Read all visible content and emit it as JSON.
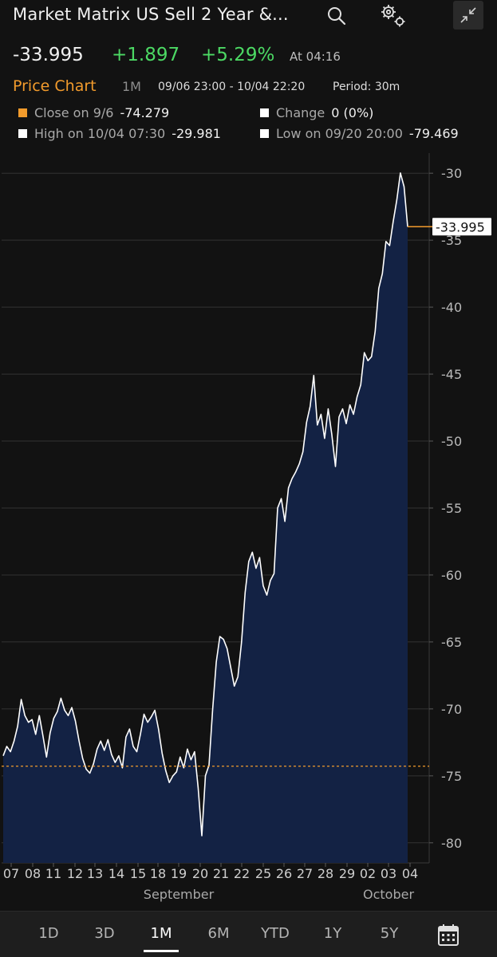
{
  "header": {
    "title": "Market Matrix US Sell 2 Year &...",
    "icons": [
      "search-icon",
      "settings-icon",
      "collapse-icon"
    ]
  },
  "quote": {
    "last": "-33.995",
    "change": "+1.897",
    "change_pct": "+5.29%",
    "time": "At 04:16",
    "positive_color": "#4cd964"
  },
  "chart_header": {
    "title": "Price Chart",
    "range": "1M",
    "dates": "09/06 23:00 - 10/04 22:20",
    "period": "Period: 30m",
    "title_color": "#f29b2c"
  },
  "legend": {
    "close": {
      "label": "Close on 9/6",
      "value": "-74.279",
      "color": "#f29b2c"
    },
    "change": {
      "label": "Change",
      "value": "0 (0%)",
      "color": "#ffffff"
    },
    "high": {
      "label": "High on 10/04 07:30",
      "value": "-29.981",
      "color": "#ffffff"
    },
    "low": {
      "label": "Low on 09/20 20:00",
      "value": "-79.469",
      "color": "#ffffff"
    }
  },
  "chart_data": {
    "type": "area",
    "x_labels": [
      "07",
      "08",
      "11",
      "12",
      "13",
      "14",
      "15",
      "18",
      "19",
      "20",
      "21",
      "22",
      "25",
      "26",
      "27",
      "28",
      "29",
      "02",
      "03",
      "04"
    ],
    "month_labels": [
      "September",
      "October"
    ],
    "y_ticks": [
      -30,
      -35,
      -40,
      -45,
      -50,
      -55,
      -60,
      -65,
      -70,
      -75,
      -80
    ],
    "ylim": [
      -81.5,
      -28.5
    ],
    "last_value_label": "-33.995",
    "last_value": -33.995,
    "reference_line": -74.279,
    "series": [
      {
        "values": [
          -73.5,
          -72.8,
          -73.2,
          -72.4,
          -71.3,
          -69.3,
          -70.5,
          -71.0,
          -70.8,
          -71.9,
          -70.5,
          -72.0,
          -73.6,
          -71.8,
          -70.7,
          -70.2,
          -69.2,
          -70.1,
          -70.5,
          -69.9,
          -70.9,
          -72.4,
          -73.7,
          -74.5,
          -74.8,
          -74.1,
          -73.0,
          -72.4,
          -73.1,
          -72.3,
          -73.4,
          -74.0,
          -73.5,
          -74.4,
          -72.1,
          -71.5,
          -72.8,
          -73.2,
          -71.9,
          -70.4,
          -71.0,
          -70.6,
          -70.1,
          -71.5,
          -73.3,
          -74.6,
          -75.5,
          -75.0,
          -74.7,
          -73.6,
          -74.4,
          -73.0,
          -73.8,
          -73.2,
          -75.9,
          -79.469,
          -75.0,
          -74.2,
          -70.0,
          -66.5,
          -64.6,
          -64.8,
          -65.5,
          -66.9,
          -68.3,
          -67.6,
          -65.0,
          -61.3,
          -59.0,
          -58.3,
          -59.5,
          -58.7,
          -60.8,
          -61.5,
          -60.4,
          -59.9,
          -55.0,
          -54.3,
          -56.0,
          -53.5,
          -52.8,
          -52.3,
          -51.7,
          -50.8,
          -48.6,
          -47.4,
          -45.1,
          -48.8,
          -48.0,
          -49.8,
          -47.6,
          -49.5,
          -51.9,
          -48.2,
          -47.6,
          -48.7,
          -47.3,
          -48.0,
          -46.7,
          -45.8,
          -43.4,
          -44.0,
          -43.7,
          -41.8,
          -38.6,
          -37.5,
          -35.1,
          -35.4,
          -33.6,
          -32.0,
          -29.981,
          -31.0,
          -33.995
        ]
      }
    ],
    "grid": true,
    "line_color": "#ffffff",
    "fill_color": "#132244",
    "reference_color": "#f29b2c"
  },
  "range_bar": {
    "options": [
      "1D",
      "3D",
      "1M",
      "6M",
      "YTD",
      "1Y",
      "5Y"
    ],
    "selected": "1M",
    "calendar_icon": "calendar-icon"
  }
}
